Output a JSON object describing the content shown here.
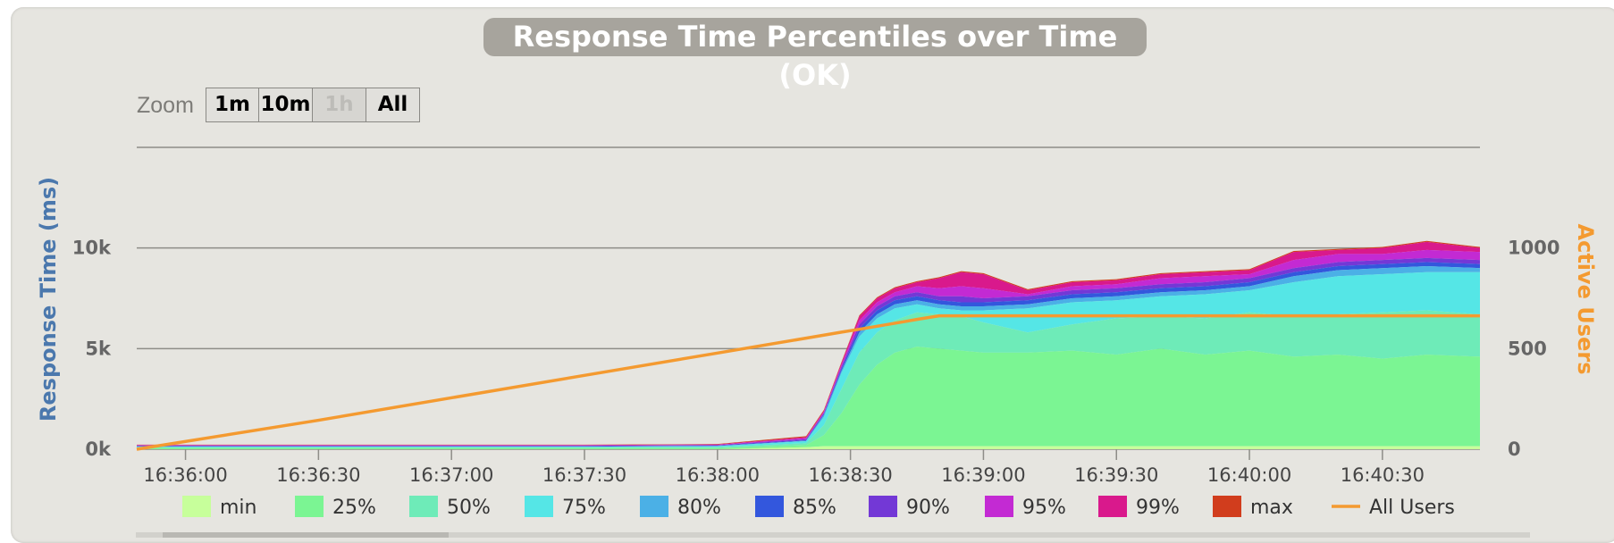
{
  "title": "Response Time Percentiles over Time (OK)",
  "zoom": {
    "label": "Zoom",
    "buttons": [
      {
        "label": "1m",
        "enabled": true
      },
      {
        "label": "10m",
        "enabled": true
      },
      {
        "label": "1h",
        "enabled": false
      },
      {
        "label": "All",
        "enabled": true
      }
    ]
  },
  "colors": {
    "min": "#c7ff9b",
    "p25": "#7bf593",
    "p50": "#6eebb8",
    "p75": "#55e6e6",
    "p80": "#4bb0e6",
    "p85": "#3357dd",
    "p90": "#7338d6",
    "p95": "#c32ad3",
    "p99": "#d9198c",
    "max": "#d13d1d",
    "users": "#f49a30",
    "left_axis": "#4b78ad",
    "grid": "#8e8d88",
    "text": "#444444"
  },
  "chart_data": {
    "type": "area",
    "title": "Response Time Percentiles over Time (OK)",
    "xlabel": "",
    "ylabel": "Response Time (ms)",
    "y2label": "Active Users",
    "xlim": [
      "16:35:49",
      "16:40:52"
    ],
    "ylim": [
      0,
      15000
    ],
    "y2lim": [
      0,
      1500
    ],
    "x_ticks": [
      "16:36:00",
      "16:36:30",
      "16:37:00",
      "16:37:30",
      "16:38:00",
      "16:38:30",
      "16:39:00",
      "16:39:30",
      "16:40:00",
      "16:40:30"
    ],
    "y_ticks": [
      "0k",
      "5k",
      "10k"
    ],
    "y2_ticks": [
      "0",
      "500",
      "1000"
    ],
    "grid": true,
    "legend_position": "bottom",
    "x": [
      "16:35:49",
      "16:36:30",
      "16:37:30",
      "16:38:00",
      "16:38:20",
      "16:38:24",
      "16:38:28",
      "16:38:32",
      "16:38:36",
      "16:38:40",
      "16:38:45",
      "16:38:50",
      "16:38:55",
      "16:39:00",
      "16:39:10",
      "16:39:20",
      "16:39:30",
      "16:39:40",
      "16:39:50",
      "16:40:00",
      "16:40:10",
      "16:40:20",
      "16:40:30",
      "16:40:40",
      "16:40:52"
    ],
    "series": [
      {
        "name": "min",
        "key": "min",
        "values": [
          0,
          0,
          0,
          0,
          100,
          150,
          150,
          150,
          150,
          150,
          150,
          150,
          150,
          150,
          150,
          150,
          150,
          150,
          150,
          150,
          150,
          150,
          150,
          150,
          150
        ]
      },
      {
        "name": "25%",
        "key": "p25",
        "values": [
          60,
          60,
          60,
          60,
          200,
          700,
          1800,
          3200,
          4200,
          4800,
          5100,
          5000,
          4900,
          4800,
          4800,
          4900,
          4700,
          5000,
          4700,
          4900,
          4600,
          4700,
          4500,
          4700,
          4600
        ]
      },
      {
        "name": "50%",
        "key": "p50",
        "values": [
          90,
          90,
          90,
          100,
          300,
          1200,
          3000,
          4800,
          5800,
          6400,
          6800,
          6700,
          6600,
          6300,
          5800,
          6200,
          6500,
          6600,
          6500,
          6800,
          6600,
          6700,
          6800,
          6900,
          6700
        ]
      },
      {
        "name": "75%",
        "key": "p75",
        "values": [
          120,
          120,
          120,
          150,
          400,
          1600,
          3800,
          5600,
          6500,
          7000,
          7200,
          7000,
          6900,
          6900,
          7000,
          7300,
          7400,
          7600,
          7700,
          7900,
          8300,
          8600,
          8700,
          8800,
          8800
        ]
      },
      {
        "name": "80%",
        "key": "p80",
        "values": [
          130,
          130,
          130,
          160,
          420,
          1700,
          3900,
          5800,
          6700,
          7200,
          7400,
          7200,
          7100,
          7100,
          7200,
          7500,
          7600,
          7800,
          7900,
          8100,
          8600,
          8900,
          9000,
          9100,
          9000
        ]
      },
      {
        "name": "85%",
        "key": "p85",
        "values": [
          150,
          150,
          150,
          180,
          450,
          1750,
          4000,
          6000,
          6900,
          7400,
          7600,
          7400,
          7300,
          7300,
          7400,
          7700,
          7800,
          8000,
          8100,
          8300,
          8800,
          9100,
          9200,
          9300,
          9200
        ]
      },
      {
        "name": "90%",
        "key": "p90",
        "values": [
          170,
          170,
          170,
          200,
          500,
          1800,
          4100,
          6200,
          7100,
          7600,
          7800,
          7600,
          7600,
          7500,
          7600,
          7900,
          8000,
          8200,
          8300,
          8500,
          9000,
          9300,
          9400,
          9500,
          9400
        ]
      },
      {
        "name": "95%",
        "key": "p95",
        "values": [
          190,
          190,
          190,
          220,
          550,
          1850,
          4200,
          6400,
          7300,
          7800,
          8100,
          8000,
          8100,
          8000,
          7700,
          8100,
          8200,
          8500,
          8600,
          8700,
          9400,
          9700,
          9700,
          9900,
          9800
        ]
      },
      {
        "name": "99%",
        "key": "p99",
        "values": [
          210,
          210,
          210,
          240,
          600,
          1900,
          4300,
          6600,
          7500,
          8000,
          8300,
          8500,
          8800,
          8700,
          7900,
          8300,
          8400,
          8700,
          8800,
          8900,
          9800,
          9900,
          10000,
          10300,
          10000
        ]
      },
      {
        "name": "max",
        "key": "max",
        "values": [
          230,
          230,
          230,
          260,
          650,
          1950,
          4350,
          6650,
          7550,
          8050,
          8350,
          8550,
          8850,
          8750,
          7950,
          8350,
          8450,
          8750,
          8850,
          8950,
          9850,
          9950,
          10050,
          10350,
          10050
        ]
      },
      {
        "name": "All Users",
        "key": "users",
        "axis": "right",
        "values": [
          0,
          144,
          367,
          478,
          552,
          567,
          582,
          596,
          611,
          626,
          645,
          663,
          663,
          663,
          663,
          663,
          663,
          663,
          663,
          663,
          663,
          663,
          663,
          663,
          663
        ]
      }
    ]
  }
}
